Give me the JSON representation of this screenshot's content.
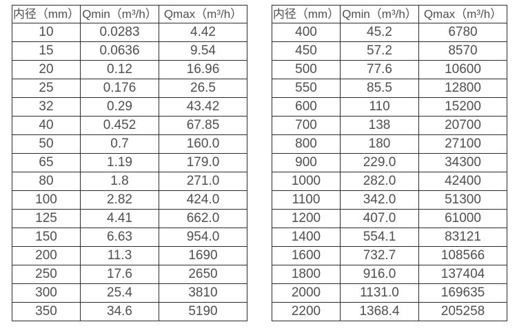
{
  "page": {
    "background": "#ffffff",
    "border_color": "#2b2b2b",
    "text_color": "#4f4f4f"
  },
  "chart_data": [
    {
      "type": "table",
      "columns": [
        "内径（mm）",
        "Qmin（m³/h）",
        "Qmax（m³/h）"
      ],
      "rows": [
        [
          "10",
          "0.0283",
          "4.42"
        ],
        [
          "15",
          "0.0636",
          "9.54"
        ],
        [
          "20",
          "0.12",
          "16.96"
        ],
        [
          "25",
          "0.176",
          "26.5"
        ],
        [
          "32",
          "0.29",
          "43.42"
        ],
        [
          "40",
          "0.452",
          "67.85"
        ],
        [
          "50",
          "0.7",
          "160.0"
        ],
        [
          "65",
          "1.19",
          "179.0"
        ],
        [
          "80",
          "1.8",
          "271.0"
        ],
        [
          "100",
          "2.82",
          "424.0"
        ],
        [
          "125",
          "4.41",
          "662.0"
        ],
        [
          "150",
          "6.63",
          "954.0"
        ],
        [
          "200",
          "11.3",
          "1690"
        ],
        [
          "250",
          "17.6",
          "2650"
        ],
        [
          "300",
          "25.4",
          "3810"
        ],
        [
          "350",
          "34.6",
          "5190"
        ]
      ]
    },
    {
      "type": "table",
      "columns": [
        "内径（mm）",
        "Qmin（m³/h）",
        "Qmax（m³/h）"
      ],
      "rows": [
        [
          "400",
          "45.2",
          "6780"
        ],
        [
          "450",
          "57.2",
          "8570"
        ],
        [
          "500",
          "77.6",
          "10600"
        ],
        [
          "550",
          "85.5",
          "12800"
        ],
        [
          "600",
          "110",
          "15200"
        ],
        [
          "700",
          "138",
          "20700"
        ],
        [
          "800",
          "180",
          "27100"
        ],
        [
          "900",
          "229.0",
          "34300"
        ],
        [
          "1000",
          "282.0",
          "42400"
        ],
        [
          "1100",
          "342.0",
          "51300"
        ],
        [
          "1200",
          "407.0",
          "61000"
        ],
        [
          "1400",
          "554.1",
          "83121"
        ],
        [
          "1600",
          "732.7",
          "108566"
        ],
        [
          "1800",
          "916.0",
          "137404"
        ],
        [
          "2000",
          "1131.0",
          "169635"
        ],
        [
          "2200",
          "1368.4",
          "205258"
        ]
      ]
    }
  ]
}
